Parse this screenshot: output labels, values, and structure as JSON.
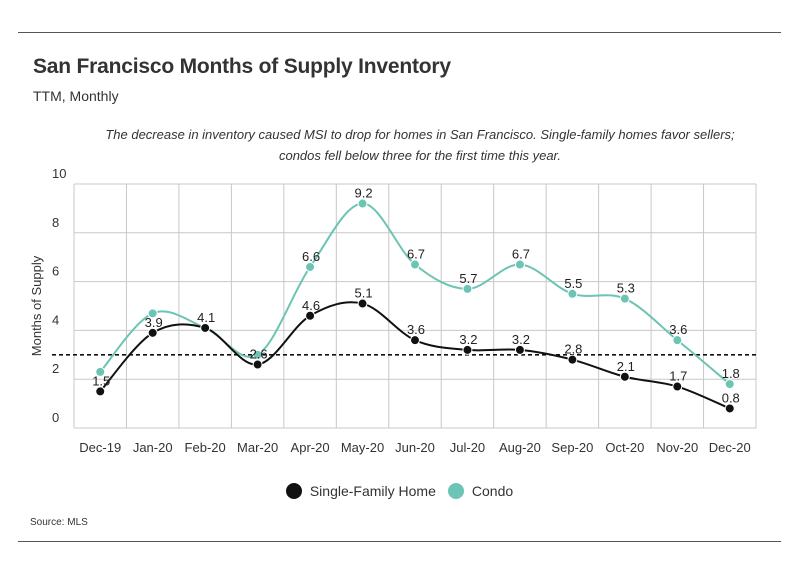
{
  "header": {
    "title": "San Francisco Months of Supply Inventory",
    "subtitle": "TTM, Monthly"
  },
  "annotation": {
    "line1": "The decrease in inventory caused MSI to drop for homes in San Francisco. Single-family homes favor sellers;",
    "line2": "condos fell below three for the first time this year."
  },
  "footer": {
    "source": "Source:  MLS"
  },
  "legend": {
    "items": [
      {
        "label": "Single-Family Home",
        "color": "#111111"
      },
      {
        "label": "Condo",
        "color": "#6cc4b4"
      }
    ]
  },
  "chart_data": {
    "type": "line",
    "ylabel": "Months of Supply",
    "ylim": [
      0,
      10
    ],
    "yticks": [
      0,
      2,
      4,
      6,
      8,
      10
    ],
    "grid": true,
    "legend_position": "bottom",
    "reference_line": 3,
    "categories": [
      "Dec-19",
      "Jan-20",
      "Feb-20",
      "Mar-20",
      "Apr-20",
      "May-20",
      "Jun-20",
      "Jul-20",
      "Aug-20",
      "Sep-20",
      "Oct-20",
      "Nov-20",
      "Dec-20"
    ],
    "series": [
      {
        "name": "Single-Family Home",
        "color": "#111111",
        "values": [
          1.5,
          3.9,
          4.1,
          2.6,
          4.6,
          5.1,
          3.6,
          3.2,
          3.2,
          2.8,
          2.1,
          1.7,
          0.8
        ],
        "labels": [
          "1.5",
          "3.9",
          "4.1",
          "2.6",
          "4.6",
          "5.1",
          "3.6",
          "3.2",
          "3.2",
          "2.8",
          "2.1",
          "1.7",
          "0.8"
        ]
      },
      {
        "name": "Condo",
        "color": "#6cc4b4",
        "values": [
          2.3,
          4.7,
          4.1,
          3.0,
          6.6,
          9.2,
          6.7,
          5.7,
          6.7,
          5.5,
          5.3,
          3.6,
          1.8
        ],
        "labels": [
          "",
          "",
          "",
          "",
          "6.6",
          "9.2",
          "6.7",
          "5.7",
          "6.7",
          "5.5",
          "5.3",
          "3.6",
          "1.8"
        ]
      }
    ]
  }
}
